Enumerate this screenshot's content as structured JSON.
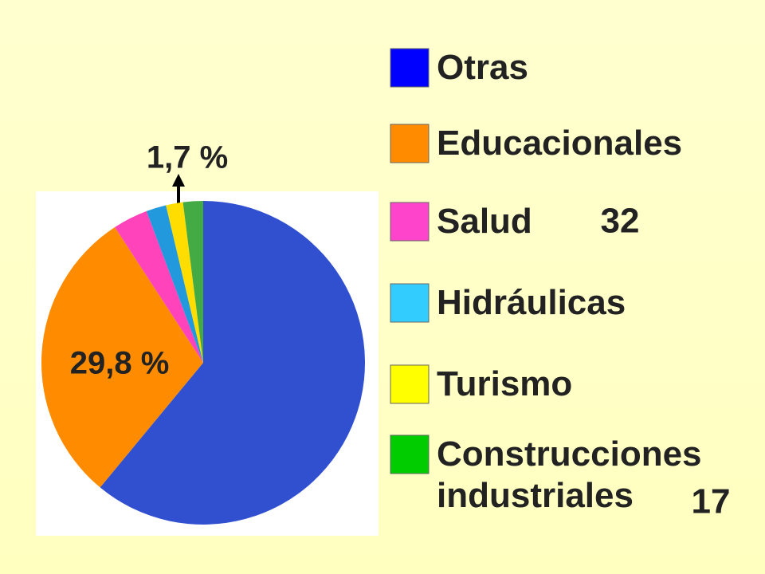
{
  "chart_data": {
    "type": "pie",
    "categories": [
      "Otras",
      "Educacionales",
      "Salud",
      "Hidráulicas",
      "Turismo",
      "Construcciones industriales"
    ],
    "values": [
      61,
      29.8,
      3.5,
      2.0,
      1.7,
      2.0
    ],
    "value_labels": [
      null,
      "29,8 %",
      null,
      null,
      "1,7 %",
      null
    ],
    "colors": [
      "#3050d0",
      "#ff8c00",
      "#ff44bb",
      "#2299dd",
      "#ffdd00",
      "#44aa44"
    ],
    "legend_colors": [
      "#0000ff",
      "#ff8c00",
      "#ff44cc",
      "#33ccff",
      "#ffff00",
      "#00cc00"
    ],
    "annotations": [
      "32",
      "17"
    ]
  }
}
